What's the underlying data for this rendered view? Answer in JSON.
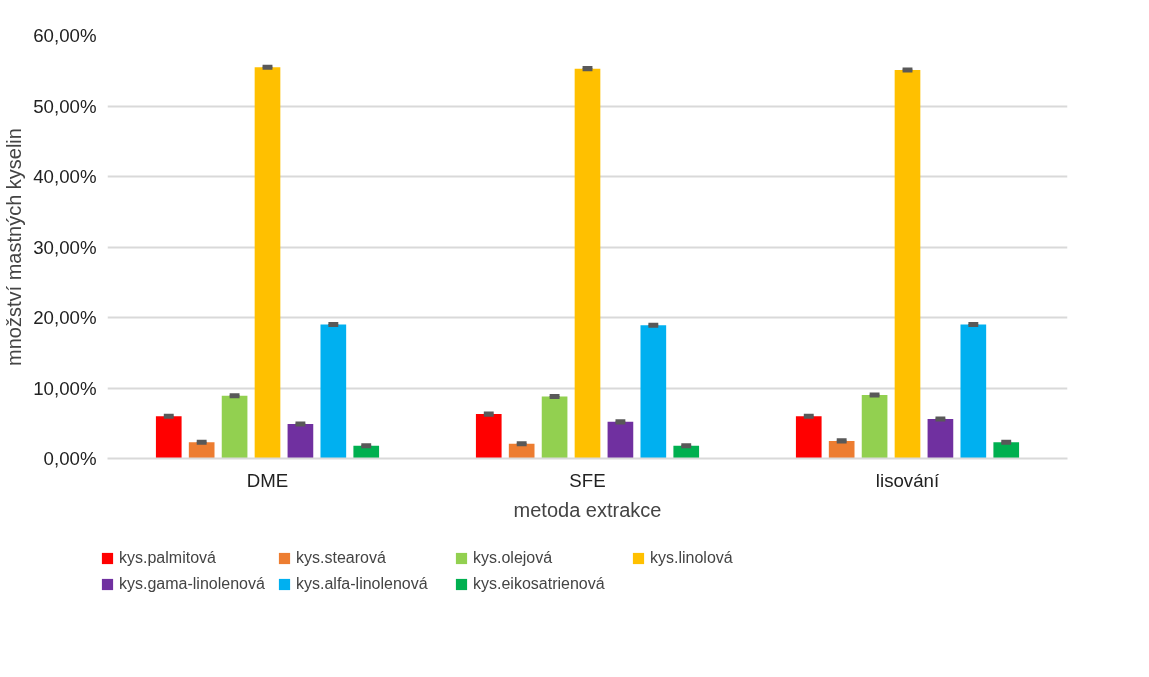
{
  "chart_data": {
    "type": "bar",
    "xlabel": "metoda extrakce",
    "ylabel": "množství mastných kyselin",
    "categories": [
      "DME",
      "SFE",
      "lisování"
    ],
    "ylim": [
      0,
      60
    ],
    "yticks": [
      {
        "value": 0,
        "label": "0,00%"
      },
      {
        "value": 10,
        "label": "10,00%"
      },
      {
        "value": 20,
        "label": "20,00%"
      },
      {
        "value": 30,
        "label": "30,00%"
      },
      {
        "value": 40,
        "label": "40,00%"
      },
      {
        "value": 50,
        "label": "50,00%"
      },
      {
        "value": 60,
        "label": "60,00%"
      }
    ],
    "grid": "y",
    "legend": "bottom",
    "series": [
      {
        "name": "kys.palmitová",
        "color": "#ff0000",
        "values": [
          6.0,
          6.3,
          6.0
        ],
        "errors": [
          0.15,
          0.15,
          0.15
        ]
      },
      {
        "name": "kys.stearová",
        "color": "#ed7d31",
        "values": [
          2.3,
          2.1,
          2.5
        ],
        "errors": [
          0.15,
          0.15,
          0.15
        ]
      },
      {
        "name": "kys.olejová",
        "color": "#92d050",
        "values": [
          8.9,
          8.8,
          9.0
        ],
        "errors": [
          0.15,
          0.15,
          0.15
        ]
      },
      {
        "name": "kys.linolová",
        "color": "#ffc000",
        "values": [
          55.5,
          55.3,
          55.1
        ],
        "errors": [
          0.15,
          0.15,
          0.15
        ]
      },
      {
        "name": "kys.gama-linolenová",
        "color": "#7030a0",
        "values": [
          4.9,
          5.2,
          5.6
        ],
        "errors": [
          0.15,
          0.15,
          0.15
        ]
      },
      {
        "name": "kys.alfa-linolenová",
        "color": "#00b0f0",
        "values": [
          19.0,
          18.9,
          19.0
        ],
        "errors": [
          0.15,
          0.15,
          0.15
        ]
      },
      {
        "name": "kys.eikosatrienová",
        "color": "#00b050",
        "values": [
          1.8,
          1.8,
          2.3
        ],
        "errors": [
          0.15,
          0.15,
          0.15
        ]
      }
    ]
  }
}
